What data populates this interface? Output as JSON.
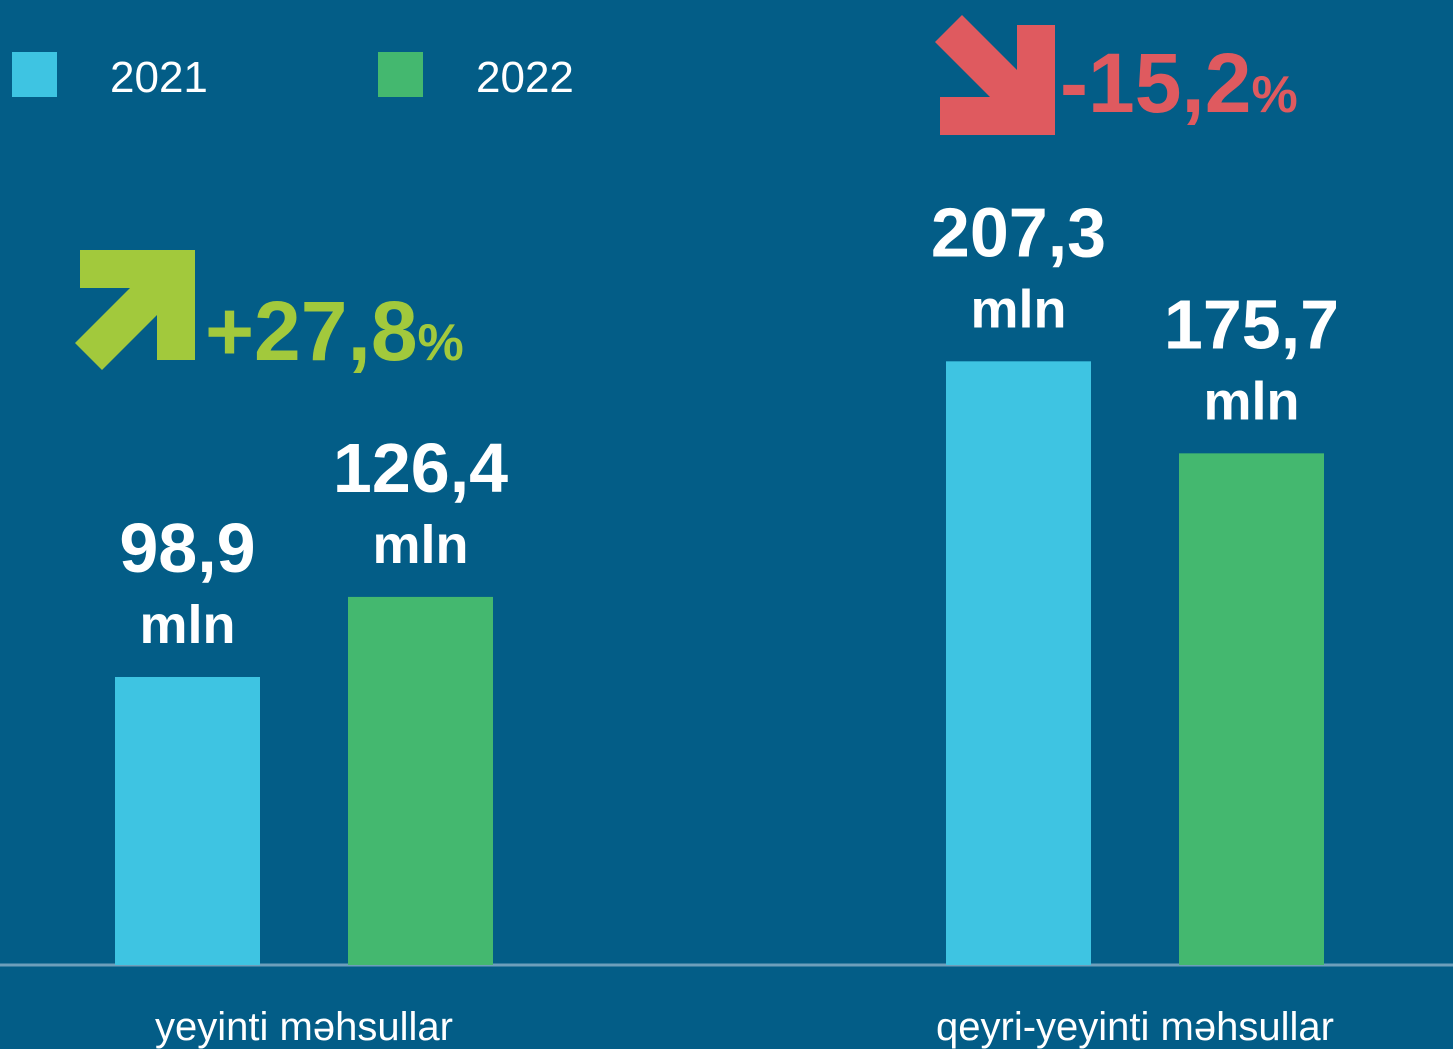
{
  "chart_data": {
    "type": "bar",
    "categories": [
      "yeyinti məhsullar",
      "qeyri-yeyinti məhsullar"
    ],
    "series": [
      {
        "name": "2021",
        "color": "#3ec4e2",
        "values": [
          98.9,
          207.3
        ],
        "value_labels": [
          "98,9",
          "207,3"
        ]
      },
      {
        "name": "2022",
        "color": "#44b86f",
        "values": [
          126.4,
          175.7
        ],
        "value_labels": [
          "126,4",
          "175,7"
        ]
      }
    ],
    "unit_label": "mln",
    "annotations": [
      {
        "text": "+27,8",
        "unit": "%",
        "color": "#a2c93c",
        "direction": "up"
      },
      {
        "text": "-15,2",
        "unit": "%",
        "color": "#df5a5f",
        "direction": "down"
      }
    ],
    "ylim": [
      0,
      330
    ],
    "legend": "top-left"
  }
}
